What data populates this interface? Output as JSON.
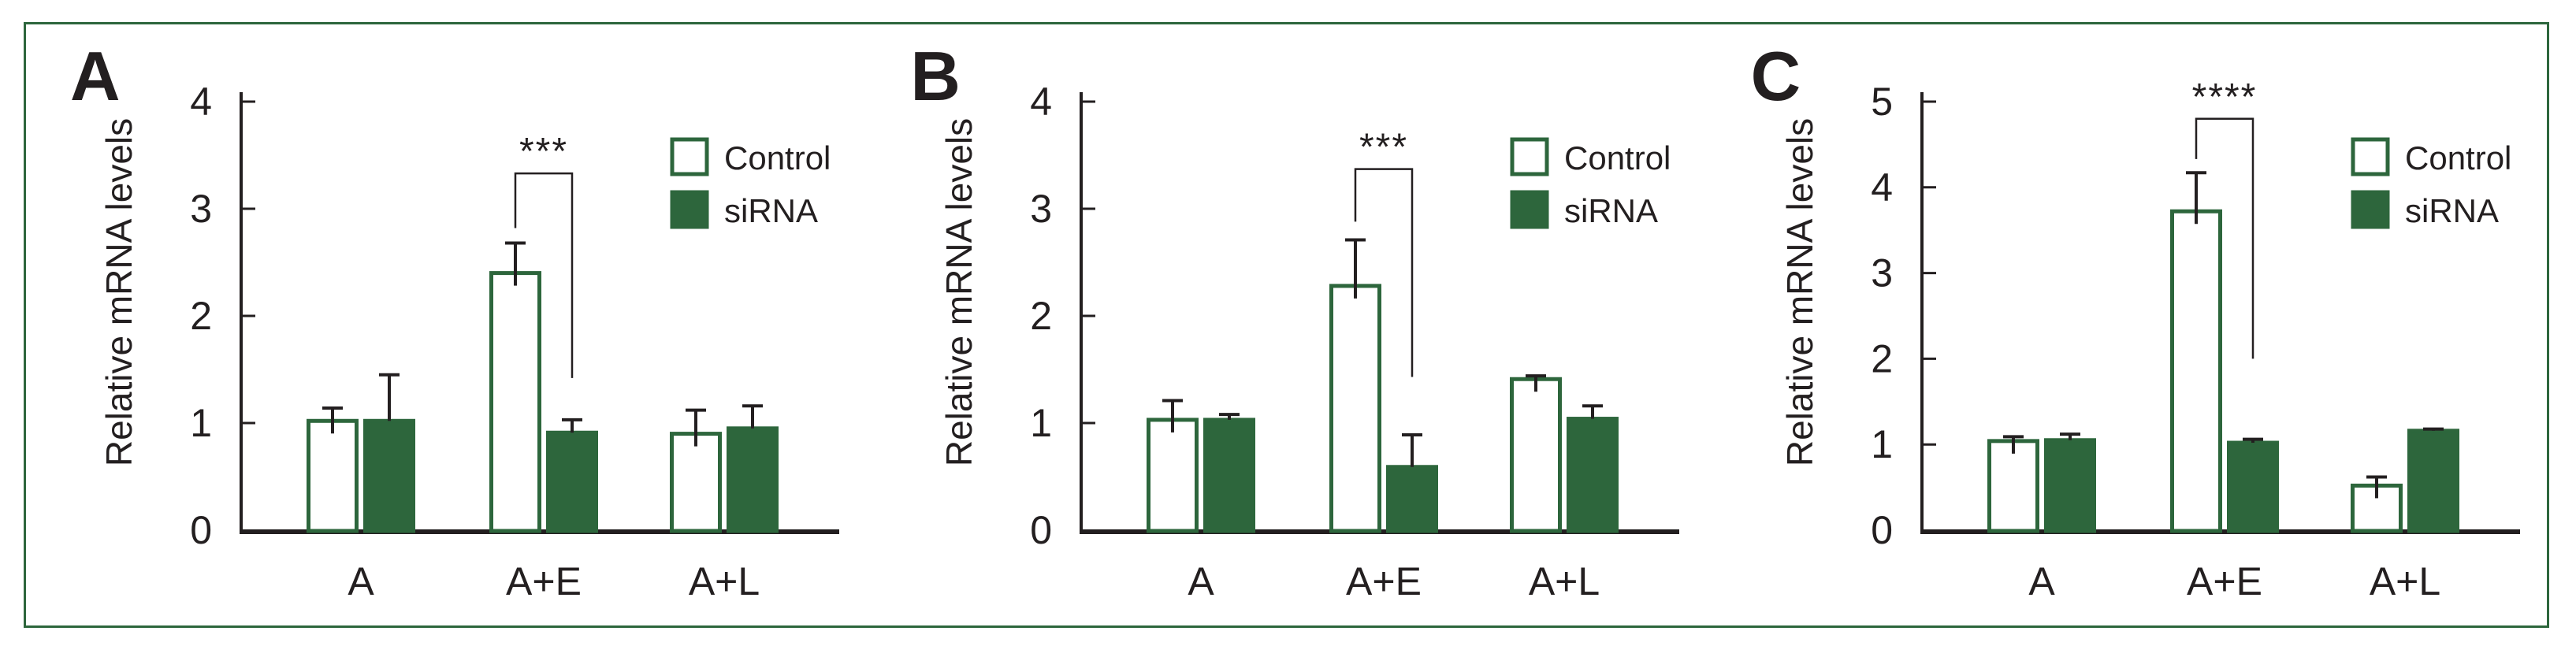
{
  "figure": {
    "border_color": "#2d663c",
    "background_color": "#ffffff"
  },
  "style": {
    "bar_green": "#2d663c",
    "control_fill": "#ffffff",
    "ink": "#231f20"
  },
  "legend": {
    "position": "top-right",
    "items": [
      {
        "label": "Control",
        "swatch": "outline"
      },
      {
        "label": "siRNA",
        "swatch": "filled"
      }
    ]
  },
  "chart_data": [
    {
      "type": "bar",
      "panel_label": "A",
      "title": "",
      "xlabel": "",
      "ylabel": "Relative mRNA levels",
      "ylim": [
        0,
        4
      ],
      "yticks": [
        0,
        1,
        2,
        3,
        4
      ],
      "grid": false,
      "legend_position": "top-right",
      "categories": [
        "A",
        "A+E",
        "A+L"
      ],
      "series": [
        {
          "name": "Control",
          "values": [
            1.02,
            2.4,
            0.9
          ],
          "errors": [
            0.12,
            0.28,
            0.22
          ]
        },
        {
          "name": "siRNA",
          "values": [
            1.02,
            0.91,
            0.95
          ],
          "errors": [
            0.43,
            0.12,
            0.21
          ]
        }
      ],
      "significance": {
        "label": "***",
        "category": "A+E",
        "from_series": "Control",
        "to_series": "siRNA",
        "bracket_top": 3.33,
        "left_leg_bottom": 2.82,
        "right_leg_bottom": 1.42
      }
    },
    {
      "type": "bar",
      "panel_label": "B",
      "title": "",
      "xlabel": "",
      "ylabel": "Relative mRNA levels",
      "ylim": [
        0,
        4
      ],
      "yticks": [
        0,
        1,
        2,
        3,
        4
      ],
      "grid": false,
      "legend_position": "top-right",
      "categories": [
        "A",
        "A+E",
        "A+L"
      ],
      "series": [
        {
          "name": "Control",
          "values": [
            1.03,
            2.28,
            1.41
          ],
          "errors": [
            0.18,
            0.43,
            0.03
          ]
        },
        {
          "name": "siRNA",
          "values": [
            1.03,
            0.59,
            1.04
          ],
          "errors": [
            0.05,
            0.3,
            0.12
          ]
        }
      ],
      "significance": {
        "label": "***",
        "category": "A+E",
        "from_series": "Control",
        "to_series": "siRNA",
        "bracket_top": 3.37,
        "left_leg_bottom": 2.88,
        "right_leg_bottom": 1.43
      }
    },
    {
      "type": "bar",
      "panel_label": "C",
      "title": "",
      "xlabel": "",
      "ylabel": "Relative mRNA levels",
      "ylim": [
        0,
        5
      ],
      "yticks": [
        0,
        1,
        2,
        3,
        4,
        5
      ],
      "grid": false,
      "legend_position": "top-right",
      "categories": [
        "A",
        "A+E",
        "A+L"
      ],
      "series": [
        {
          "name": "Control",
          "values": [
            1.04,
            3.72,
            0.52
          ],
          "errors": [
            0.05,
            0.45,
            0.1
          ]
        },
        {
          "name": "siRNA",
          "values": [
            1.05,
            1.02,
            1.16
          ],
          "errors": [
            0.07,
            0.04,
            0.02
          ]
        }
      ],
      "significance": {
        "label": "****",
        "category": "A+E",
        "from_series": "Control",
        "to_series": "siRNA",
        "bracket_top": 4.8,
        "left_leg_bottom": 4.33,
        "right_leg_bottom": 2.0
      }
    }
  ]
}
